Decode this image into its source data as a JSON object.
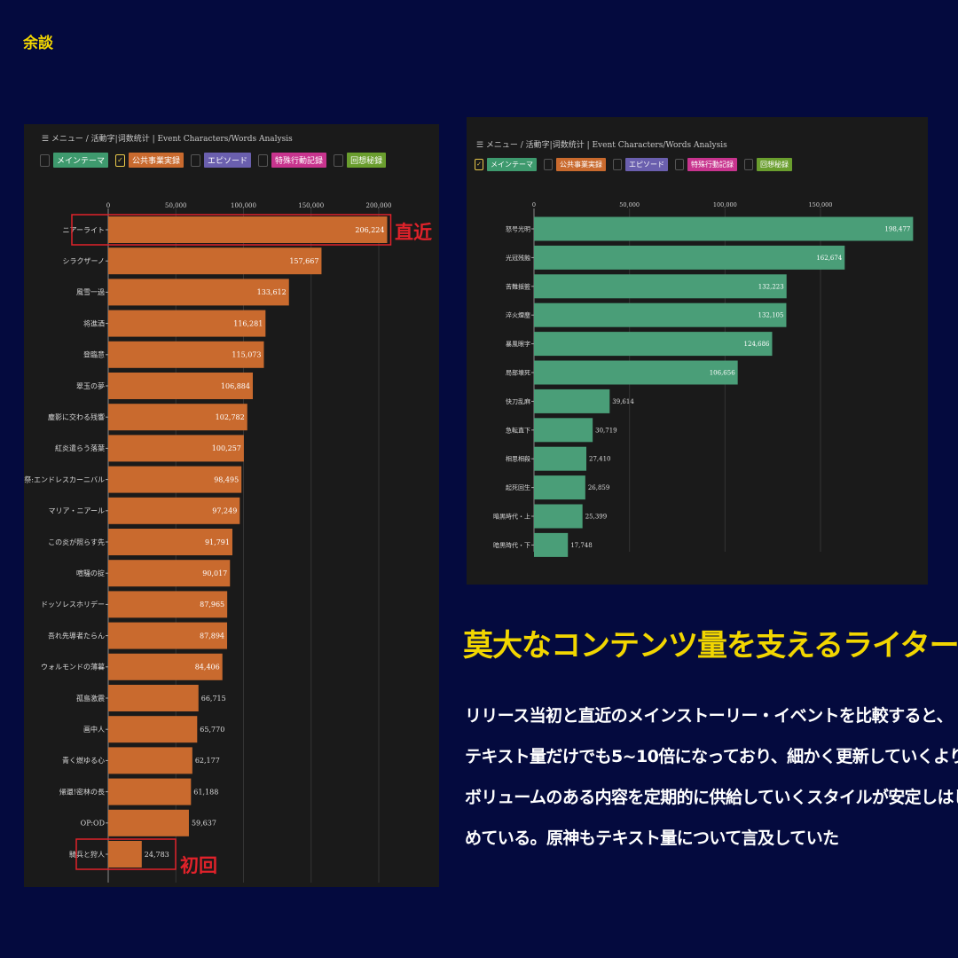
{
  "corner_label": "余談",
  "left_panel": {
    "breadcrumb": "☰ メニュー / 活動字|词数统计 | Event Characters/Words Analysis",
    "tabs": [
      {
        "label": "メインテーマ",
        "checked": false,
        "color": "#3e9a6e"
      },
      {
        "label": "公共事業実録",
        "checked": true,
        "color": "#c96a2e"
      },
      {
        "label": "エピソード",
        "checked": false,
        "color": "#6a5fae"
      },
      {
        "label": "特殊行動記録",
        "checked": false,
        "color": "#c8348e"
      },
      {
        "label": "回想秘録",
        "checked": false,
        "color": "#6a9e2e"
      }
    ],
    "annotation_top": "直近",
    "annotation_bottom": "初回"
  },
  "right_panel": {
    "breadcrumb": "☰ メニュー / 活動字|词数统计 | Event Characters/Words Analysis",
    "tabs": [
      {
        "label": "メインテーマ",
        "checked": true,
        "color": "#3e9a6e"
      },
      {
        "label": "公共事業実録",
        "checked": false,
        "color": "#c96a2e"
      },
      {
        "label": "エピソード",
        "checked": false,
        "color": "#6a5fae"
      },
      {
        "label": "特殊行動記録",
        "checked": false,
        "color": "#c8348e"
      },
      {
        "label": "回想秘録",
        "checked": false,
        "color": "#6a9e2e"
      }
    ]
  },
  "headline": "莫大なコンテンツ量を支えるライター陣",
  "body_lines": [
    "リリース当初と直近のメインストーリー・イベントを比較すると、",
    "テキスト量だけでも5~10倍になっており、細かく更新していくより",
    "ボリュームのある内容を定期的に供給していくスタイルが安定しはじ",
    "めている。原神もテキスト量について言及していた"
  ],
  "chart_data": [
    {
      "type": "bar",
      "orientation": "horizontal",
      "bar_color": "#c96a2e",
      "categories": [
        "ニアーライト",
        "シラクザーノ",
        "風雪一過",
        "将進酒",
        "登臨意",
        "翠玉の夢",
        "塵影に交わる残響",
        "紅炎遣らう落葉",
        "感謝祭:エンドレスカーニバル",
        "マリア・ニアール",
        "この炎が照らす先",
        "喧騒の掟",
        "ドッソレスホリデー",
        "吾れ先導者たらん",
        "ウォルモンドの薄暮",
        "孤島激震",
        "画中人",
        "青く燃ゆる心",
        "帰還!密林の長",
        "OP:OD",
        "騎兵と狩人"
      ],
      "values": [
        206224,
        157667,
        133612,
        116281,
        115073,
        106884,
        102782,
        100257,
        98495,
        97249,
        91791,
        90017,
        87965,
        87894,
        84406,
        66715,
        65770,
        62177,
        61188,
        59637,
        24783
      ],
      "value_labels": [
        "206,224",
        "157,667",
        "133,612",
        "116,281",
        "115,073",
        "106,884",
        "102,782",
        "100,257",
        "98,495",
        "97,249",
        "91,791",
        "90,017",
        "87,965",
        "87,894",
        "84,406",
        "66,715",
        "65,770",
        "62,177",
        "61,188",
        "59,637",
        "24,783"
      ],
      "xticks": [
        0,
        50000,
        100000,
        150000,
        200000
      ],
      "xtick_labels": [
        "0",
        "50,000",
        "100,000",
        "150,000",
        "200,000"
      ],
      "highlighted": [
        "ニアーライト",
        "騎兵と狩人"
      ],
      "xlabel": "",
      "ylabel": ""
    },
    {
      "type": "bar",
      "orientation": "horizontal",
      "bar_color": "#4a9e78",
      "categories": [
        "怒号光明",
        "光冠残蝕",
        "苦難揺籃",
        "淬火煙塵",
        "暴風眼字",
        "局部壊死",
        "快刀乱麻",
        "急転直下",
        "相思相殺",
        "起死回生",
        "暗黒時代・上",
        "暗黒時代・下"
      ],
      "values": [
        198477,
        162674,
        132223,
        132105,
        124686,
        106656,
        39614,
        30719,
        27410,
        26859,
        25399,
        17748
      ],
      "value_labels": [
        "198,477",
        "162,674",
        "132,223",
        "132,105",
        "124,686",
        "106,656",
        "39,614",
        "30,719",
        "27,410",
        "26,859",
        "25,399",
        "17,748"
      ],
      "xticks": [
        0,
        50000,
        100000,
        150000
      ],
      "xtick_labels": [
        "0",
        "50,000",
        "100,000",
        "150,000"
      ],
      "xlabel": "",
      "ylabel": ""
    }
  ]
}
